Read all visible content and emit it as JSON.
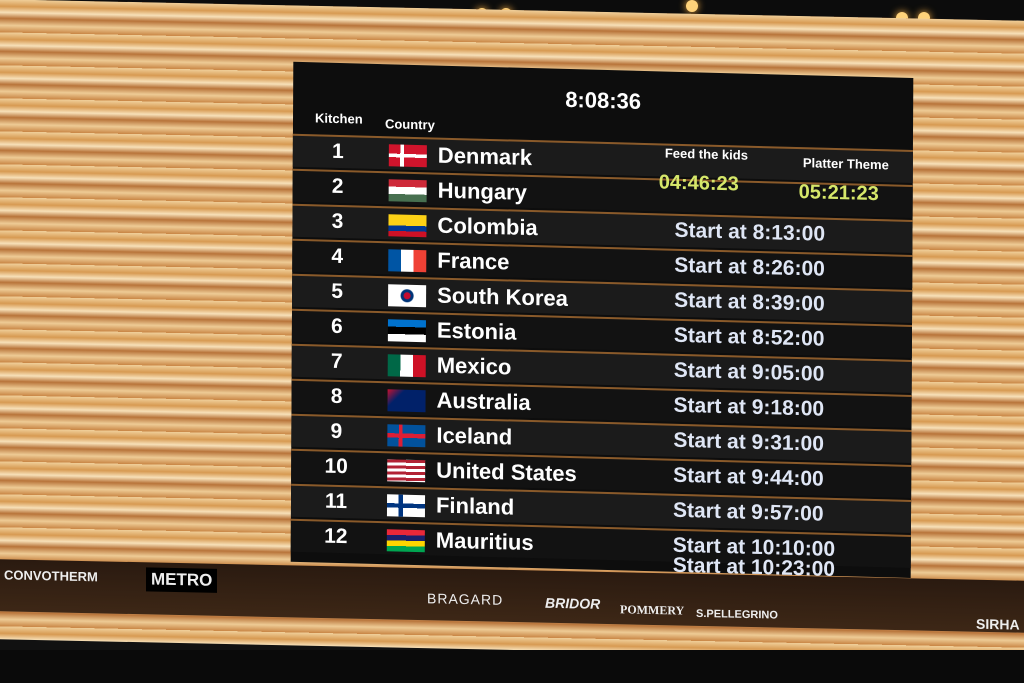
{
  "clock": "8:08:36",
  "headers": {
    "kitchen": "Kitchen",
    "country": "Country",
    "feed_the_kids": "Feed the kids",
    "platter_theme": "Platter Theme"
  },
  "timers": {
    "feed_the_kids": "04:46:23",
    "platter_theme": "05:21:23"
  },
  "rows": [
    {
      "kitchen": "1",
      "country": "Denmark",
      "flag": "denmark-flag-icon",
      "start": ""
    },
    {
      "kitchen": "2",
      "country": "Hungary",
      "flag": "hungary-flag-icon",
      "start": ""
    },
    {
      "kitchen": "3",
      "country": "Colombia",
      "flag": "colombia-flag-icon",
      "start": "Start at 8:13:00"
    },
    {
      "kitchen": "4",
      "country": "France",
      "flag": "france-flag-icon",
      "start": "Start at 8:26:00"
    },
    {
      "kitchen": "5",
      "country": "South Korea",
      "flag": "south-korea-flag-icon",
      "start": "Start at 8:39:00"
    },
    {
      "kitchen": "6",
      "country": "Estonia",
      "flag": "estonia-flag-icon",
      "start": "Start at 8:52:00"
    },
    {
      "kitchen": "7",
      "country": "Mexico",
      "flag": "mexico-flag-icon",
      "start": "Start at 9:05:00"
    },
    {
      "kitchen": "8",
      "country": "Australia",
      "flag": "australia-flag-icon",
      "start": "Start at 9:18:00"
    },
    {
      "kitchen": "9",
      "country": "Iceland",
      "flag": "iceland-flag-icon",
      "start": "Start at 9:31:00"
    },
    {
      "kitchen": "10",
      "country": "United States",
      "flag": "usa-flag-icon",
      "start": "Start at 9:44:00"
    },
    {
      "kitchen": "11",
      "country": "Finland",
      "flag": "finland-flag-icon",
      "start": "Start at 9:57:00"
    },
    {
      "kitchen": "12",
      "country": "Mauritius",
      "flag": "mauritius-flag-icon",
      "start": "Start at 10:10:00"
    }
  ],
  "extra_start": "Start at 10:23:00",
  "sponsors": [
    "CONVOTHERM",
    "METRO",
    "BRAGARD",
    "BRIDOR",
    "POMMERY",
    "S.PELLEGRINO",
    "SIRHA"
  ],
  "colors": {
    "timer": "#d6e76a",
    "board": "#0d0d0d",
    "row_divider": "#8a5a2a"
  }
}
